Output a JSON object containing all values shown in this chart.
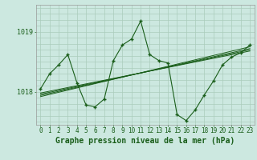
{
  "background_color": "#cce8e0",
  "grid_color": "#aaccbb",
  "line_color": "#1a5e1a",
  "text_color": "#1a5e1a",
  "title": "Graphe pression niveau de la mer (hPa)",
  "ylabel_ticks": [
    1018,
    1019
  ],
  "xlim": [
    -0.5,
    23.5
  ],
  "ylim": [
    1017.45,
    1019.45
  ],
  "main_series": [
    0,
    1,
    2,
    3,
    4,
    5,
    6,
    7,
    8,
    9,
    10,
    11,
    12,
    13,
    14,
    15,
    16,
    17,
    18,
    19,
    20,
    21,
    22,
    23
  ],
  "main_values": [
    1018.05,
    1018.3,
    1018.45,
    1018.62,
    1018.15,
    1017.78,
    1017.75,
    1017.88,
    1018.52,
    1018.78,
    1018.88,
    1019.18,
    1018.62,
    1018.52,
    1018.48,
    1017.62,
    1017.52,
    1017.7,
    1017.95,
    1018.18,
    1018.45,
    1018.58,
    1018.65,
    1018.78
  ],
  "trend_lines": [
    {
      "x": [
        0,
        23
      ],
      "y": [
        1017.92,
        1018.75
      ]
    },
    {
      "x": [
        0,
        23
      ],
      "y": [
        1017.94,
        1018.72
      ]
    },
    {
      "x": [
        0,
        23
      ],
      "y": [
        1017.96,
        1018.7
      ]
    },
    {
      "x": [
        0,
        23
      ],
      "y": [
        1017.98,
        1018.68
      ]
    }
  ],
  "title_fontsize": 7,
  "tick_fontsize": 6
}
